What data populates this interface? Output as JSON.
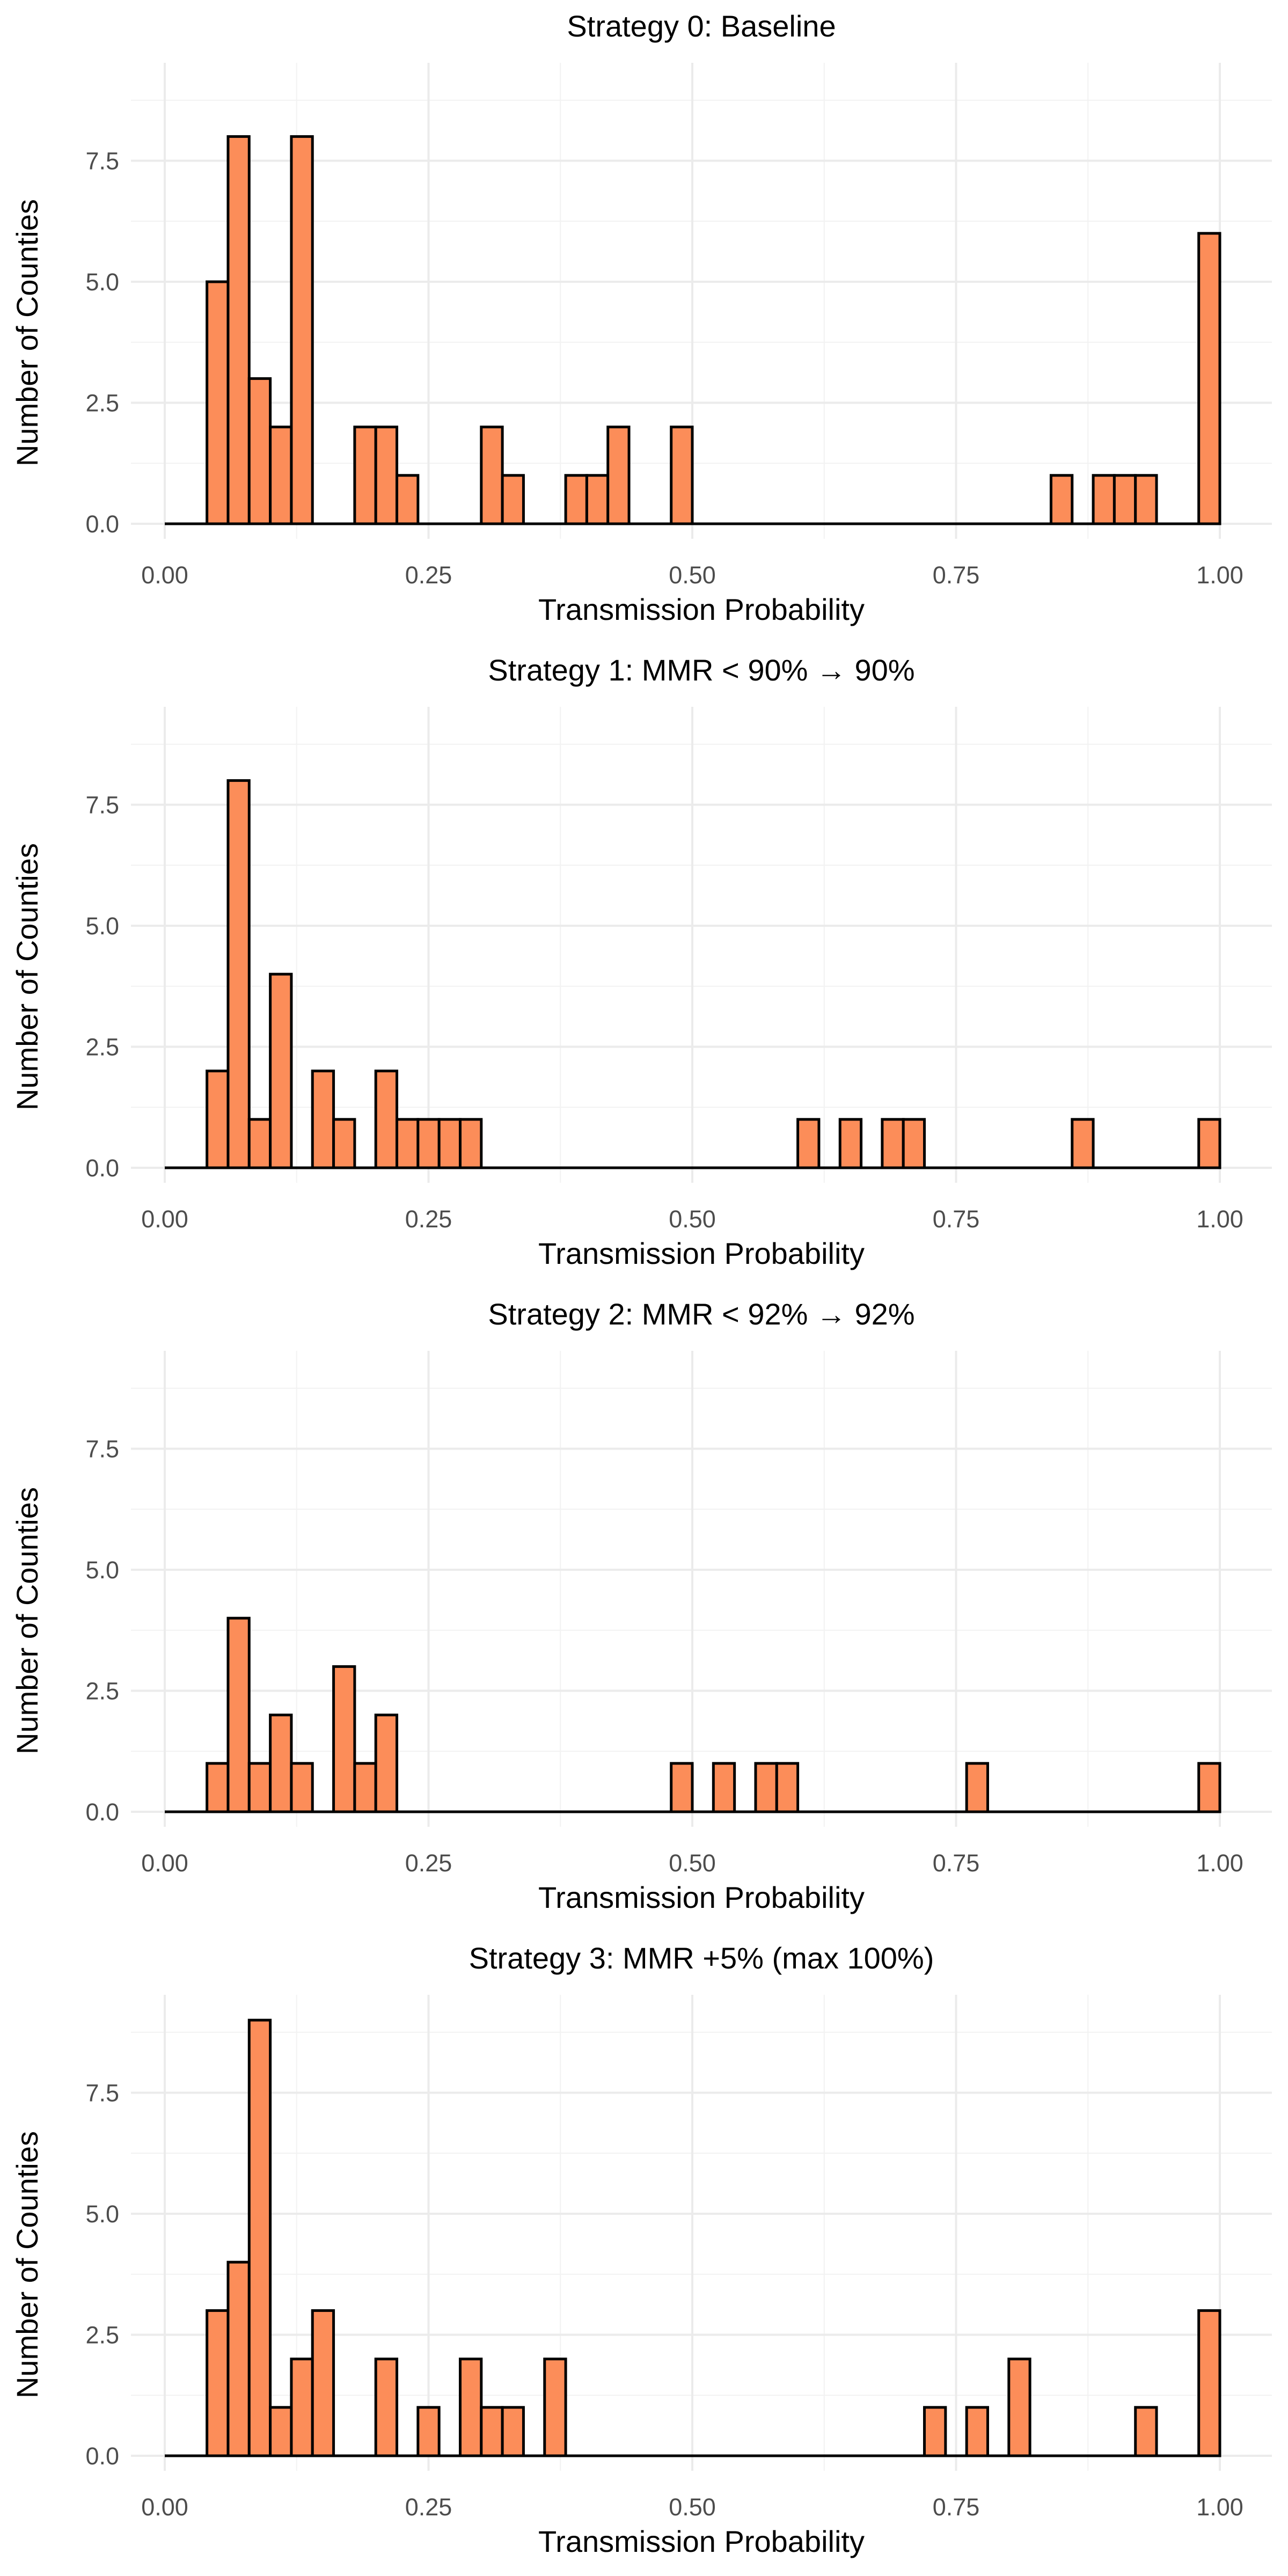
{
  "chart_data": [
    {
      "type": "bar",
      "title": "Strategy 0: Baseline",
      "xlabel": "Transmission Probability",
      "ylabel": "Number of Counties",
      "xlim": [
        0,
        1
      ],
      "ylim": [
        0,
        9
      ],
      "xticks": [
        "0.00",
        "0.25",
        "0.50",
        "0.75",
        "1.00"
      ],
      "yticks": [
        "0.0",
        "2.5",
        "5.0",
        "7.5"
      ],
      "bin_width": 0.02,
      "bins": [
        {
          "x": 0.05,
          "count": 5
        },
        {
          "x": 0.07,
          "count": 8
        },
        {
          "x": 0.09,
          "count": 3
        },
        {
          "x": 0.11,
          "count": 2
        },
        {
          "x": 0.13,
          "count": 8
        },
        {
          "x": 0.19,
          "count": 2
        },
        {
          "x": 0.21,
          "count": 2
        },
        {
          "x": 0.23,
          "count": 1
        },
        {
          "x": 0.31,
          "count": 2
        },
        {
          "x": 0.33,
          "count": 1
        },
        {
          "x": 0.39,
          "count": 1
        },
        {
          "x": 0.41,
          "count": 1
        },
        {
          "x": 0.43,
          "count": 2
        },
        {
          "x": 0.49,
          "count": 2
        },
        {
          "x": 0.85,
          "count": 1
        },
        {
          "x": 0.89,
          "count": 1
        },
        {
          "x": 0.91,
          "count": 1
        },
        {
          "x": 0.93,
          "count": 1
        },
        {
          "x": 0.99,
          "count": 6
        }
      ],
      "bar_color": "#FC8D59",
      "grid": true
    },
    {
      "type": "bar",
      "title": "Strategy 1: MMR < 90% → 90%",
      "xlabel": "Transmission Probability",
      "ylabel": "Number of Counties",
      "xlim": [
        0,
        1
      ],
      "ylim": [
        0,
        9
      ],
      "xticks": [
        "0.00",
        "0.25",
        "0.50",
        "0.75",
        "1.00"
      ],
      "yticks": [
        "0.0",
        "2.5",
        "5.0",
        "7.5"
      ],
      "bin_width": 0.02,
      "bins": [
        {
          "x": 0.05,
          "count": 2
        },
        {
          "x": 0.07,
          "count": 8
        },
        {
          "x": 0.09,
          "count": 1
        },
        {
          "x": 0.11,
          "count": 4
        },
        {
          "x": 0.15,
          "count": 2
        },
        {
          "x": 0.17,
          "count": 1
        },
        {
          "x": 0.21,
          "count": 2
        },
        {
          "x": 0.23,
          "count": 1
        },
        {
          "x": 0.25,
          "count": 1
        },
        {
          "x": 0.27,
          "count": 1
        },
        {
          "x": 0.29,
          "count": 1
        },
        {
          "x": 0.61,
          "count": 1
        },
        {
          "x": 0.65,
          "count": 1
        },
        {
          "x": 0.69,
          "count": 1
        },
        {
          "x": 0.71,
          "count": 1
        },
        {
          "x": 0.87,
          "count": 1
        },
        {
          "x": 0.99,
          "count": 1
        }
      ],
      "bar_color": "#FC8D59",
      "grid": true
    },
    {
      "type": "bar",
      "title": "Strategy 2: MMR < 92% → 92%",
      "xlabel": "Transmission Probability",
      "ylabel": "Number of Counties",
      "xlim": [
        0,
        1
      ],
      "ylim": [
        0,
        9
      ],
      "xticks": [
        "0.00",
        "0.25",
        "0.50",
        "0.75",
        "1.00"
      ],
      "yticks": [
        "0.0",
        "2.5",
        "5.0",
        "7.5"
      ],
      "bin_width": 0.02,
      "bins": [
        {
          "x": 0.05,
          "count": 1
        },
        {
          "x": 0.07,
          "count": 4
        },
        {
          "x": 0.09,
          "count": 1
        },
        {
          "x": 0.11,
          "count": 2
        },
        {
          "x": 0.13,
          "count": 1
        },
        {
          "x": 0.17,
          "count": 3
        },
        {
          "x": 0.19,
          "count": 1
        },
        {
          "x": 0.21,
          "count": 2
        },
        {
          "x": 0.49,
          "count": 1
        },
        {
          "x": 0.53,
          "count": 1
        },
        {
          "x": 0.57,
          "count": 1
        },
        {
          "x": 0.59,
          "count": 1
        },
        {
          "x": 0.77,
          "count": 1
        },
        {
          "x": 0.99,
          "count": 1
        }
      ],
      "bar_color": "#FC8D59",
      "grid": true
    },
    {
      "type": "bar",
      "title": "Strategy 3: MMR +5% (max 100%)",
      "xlabel": "Transmission Probability",
      "ylabel": "Number of Counties",
      "xlim": [
        0,
        1
      ],
      "ylim": [
        0,
        9
      ],
      "xticks": [
        "0.00",
        "0.25",
        "0.50",
        "0.75",
        "1.00"
      ],
      "yticks": [
        "0.0",
        "2.5",
        "5.0",
        "7.5"
      ],
      "bin_width": 0.02,
      "bins": [
        {
          "x": 0.05,
          "count": 3
        },
        {
          "x": 0.07,
          "count": 4
        },
        {
          "x": 0.09,
          "count": 9
        },
        {
          "x": 0.11,
          "count": 1
        },
        {
          "x": 0.13,
          "count": 2
        },
        {
          "x": 0.15,
          "count": 3
        },
        {
          "x": 0.21,
          "count": 2
        },
        {
          "x": 0.25,
          "count": 1
        },
        {
          "x": 0.29,
          "count": 2
        },
        {
          "x": 0.31,
          "count": 1
        },
        {
          "x": 0.33,
          "count": 1
        },
        {
          "x": 0.37,
          "count": 2
        },
        {
          "x": 0.73,
          "count": 1
        },
        {
          "x": 0.77,
          "count": 1
        },
        {
          "x": 0.81,
          "count": 2
        },
        {
          "x": 0.93,
          "count": 1
        },
        {
          "x": 0.99,
          "count": 3
        }
      ],
      "bar_color": "#FC8D59",
      "grid": true
    }
  ]
}
